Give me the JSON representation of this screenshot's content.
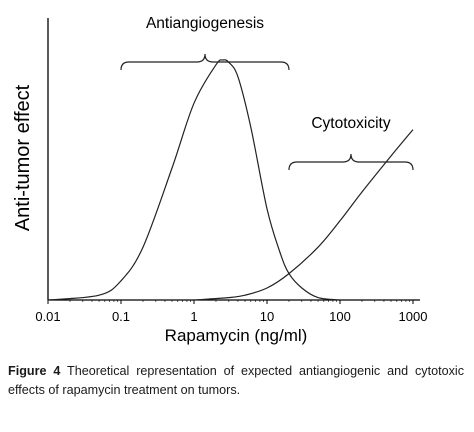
{
  "chart_data": {
    "type": "line",
    "xlabel": "Rapamycin (ng/ml)",
    "ylabel": "Anti-tumor effect",
    "x_scale": "log",
    "xlim": [
      0.01,
      1000
    ],
    "x_ticks": [
      "0.01",
      "0.1",
      "1",
      "10",
      "100",
      "1000"
    ],
    "y_units": "relative effect (peak = 1)",
    "grid": false,
    "series": [
      {
        "name": "Antiangiogenesis",
        "x": [
          0.01,
          0.05,
          0.1,
          0.2,
          0.5,
          1,
          2,
          2.5,
          3,
          4,
          6,
          10,
          15,
          20,
          30,
          50,
          100
        ],
        "y": [
          0.0,
          0.02,
          0.08,
          0.22,
          0.55,
          0.82,
          0.98,
          1.0,
          0.99,
          0.93,
          0.72,
          0.38,
          0.2,
          0.11,
          0.05,
          0.01,
          0.0
        ]
      },
      {
        "name": "Cytotoxicity",
        "x": [
          1,
          3,
          5,
          10,
          20,
          50,
          100,
          200,
          500,
          1000
        ],
        "y": [
          0.0,
          0.01,
          0.02,
          0.05,
          0.11,
          0.22,
          0.33,
          0.45,
          0.6,
          0.71
        ]
      }
    ],
    "brackets": [
      {
        "label": "Antiangiogenesis",
        "x_range": [
          0.1,
          20
        ]
      },
      {
        "label": "Cytotoxicity",
        "x_range": [
          20,
          1000
        ]
      }
    ]
  },
  "caption": {
    "label": "Figure 4",
    "text": " Theoretical representation of expected antiangiogenic and cytotoxic effects of rapamycin treatment on tumors."
  }
}
